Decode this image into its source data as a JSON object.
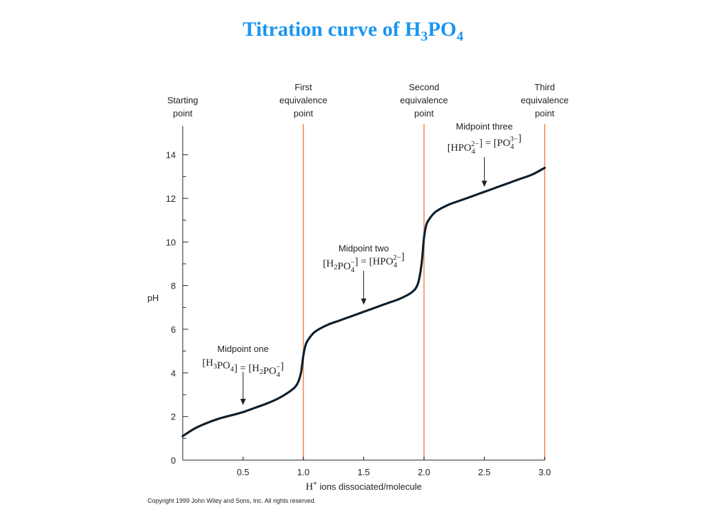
{
  "title": {
    "main": "Titration curve of H",
    "sub1": "3",
    "mid": "PO",
    "sub2": "4"
  },
  "copyright": "Copyright 1999 John Wiley and Sons, Inc. All rights reserved.",
  "colors": {
    "title": "#1a96f0",
    "curve": "#0d1f2d",
    "equivalence_line": "#f4a47a"
  },
  "chart_data": {
    "type": "line",
    "title": "Titration curve of H3PO4",
    "xlabel_prefix": "H",
    "xlabel_sup": "+",
    "xlabel_rest": " ions dissociated/molecule",
    "ylabel": "pH",
    "xlim": [
      0,
      3.0
    ],
    "ylim": [
      0,
      15
    ],
    "x_ticks": [
      0.5,
      1.0,
      1.5,
      2.0,
      2.5,
      3.0
    ],
    "x_tick_labels": [
      "0.5",
      "1.0",
      "1.5",
      "2.0",
      "2.5",
      "3.0"
    ],
    "y_ticks": [
      0,
      2,
      4,
      6,
      8,
      10,
      12,
      14
    ],
    "y_tick_labels": [
      "0",
      "2",
      "4",
      "6",
      "8",
      "10",
      "12",
      "14"
    ],
    "y_minor_ticks": [
      1,
      3,
      5,
      7,
      9,
      11,
      13
    ],
    "grid": false,
    "series": [
      {
        "x": [
          0,
          0.1,
          0.2,
          0.3,
          0.4,
          0.5,
          0.6,
          0.7,
          0.8,
          0.9,
          0.95,
          0.98,
          1.0,
          1.02,
          1.05,
          1.1,
          1.2,
          1.3,
          1.4,
          1.5,
          1.6,
          1.7,
          1.8,
          1.9,
          1.95,
          1.98,
          2.0,
          2.02,
          2.05,
          2.1,
          2.2,
          2.3,
          2.4,
          2.5,
          2.6,
          2.7,
          2.8,
          2.9,
          3.0
        ],
        "values": [
          1.1,
          1.45,
          1.7,
          1.9,
          2.05,
          2.2,
          2.4,
          2.6,
          2.85,
          3.2,
          3.5,
          4.0,
          4.8,
          5.3,
          5.6,
          5.9,
          6.2,
          6.4,
          6.6,
          6.8,
          7.0,
          7.2,
          7.4,
          7.7,
          8.1,
          9.0,
          10.2,
          10.8,
          11.1,
          11.4,
          11.7,
          11.9,
          12.1,
          12.3,
          12.5,
          12.7,
          12.9,
          13.1,
          13.4
        ]
      }
    ],
    "equivalence_lines": [
      {
        "x": 1.0,
        "label": [
          "First",
          "equivalence",
          "point"
        ]
      },
      {
        "x": 2.0,
        "label": [
          "Second",
          "equivalence",
          "point"
        ]
      },
      {
        "x": 3.0,
        "label": [
          "Third",
          "equivalence",
          "point"
        ]
      }
    ],
    "starting_point": {
      "x": 0,
      "label": [
        "Starting",
        "point"
      ]
    },
    "annotations": [
      {
        "label": "Midpoint one",
        "x": 0.5,
        "arrow_to_ph": 2.4,
        "equation": [
          "[H",
          "3",
          "",
          "PO",
          "4",
          "",
          "] = [H",
          "2",
          "",
          "PO",
          "4",
          "−",
          "]"
        ]
      },
      {
        "label": "Midpoint two",
        "x": 1.5,
        "arrow_to_ph": 7.0,
        "equation": [
          "[H",
          "2",
          "",
          "PO",
          "4",
          "−",
          "] = [HPO",
          "4",
          "2−",
          "]"
        ]
      },
      {
        "label": "Midpoint three",
        "x": 2.5,
        "arrow_to_ph": 12.4,
        "equation": [
          "[HPO",
          "4",
          "2−",
          "] = [PO",
          "4",
          "3−",
          "]"
        ]
      }
    ]
  }
}
